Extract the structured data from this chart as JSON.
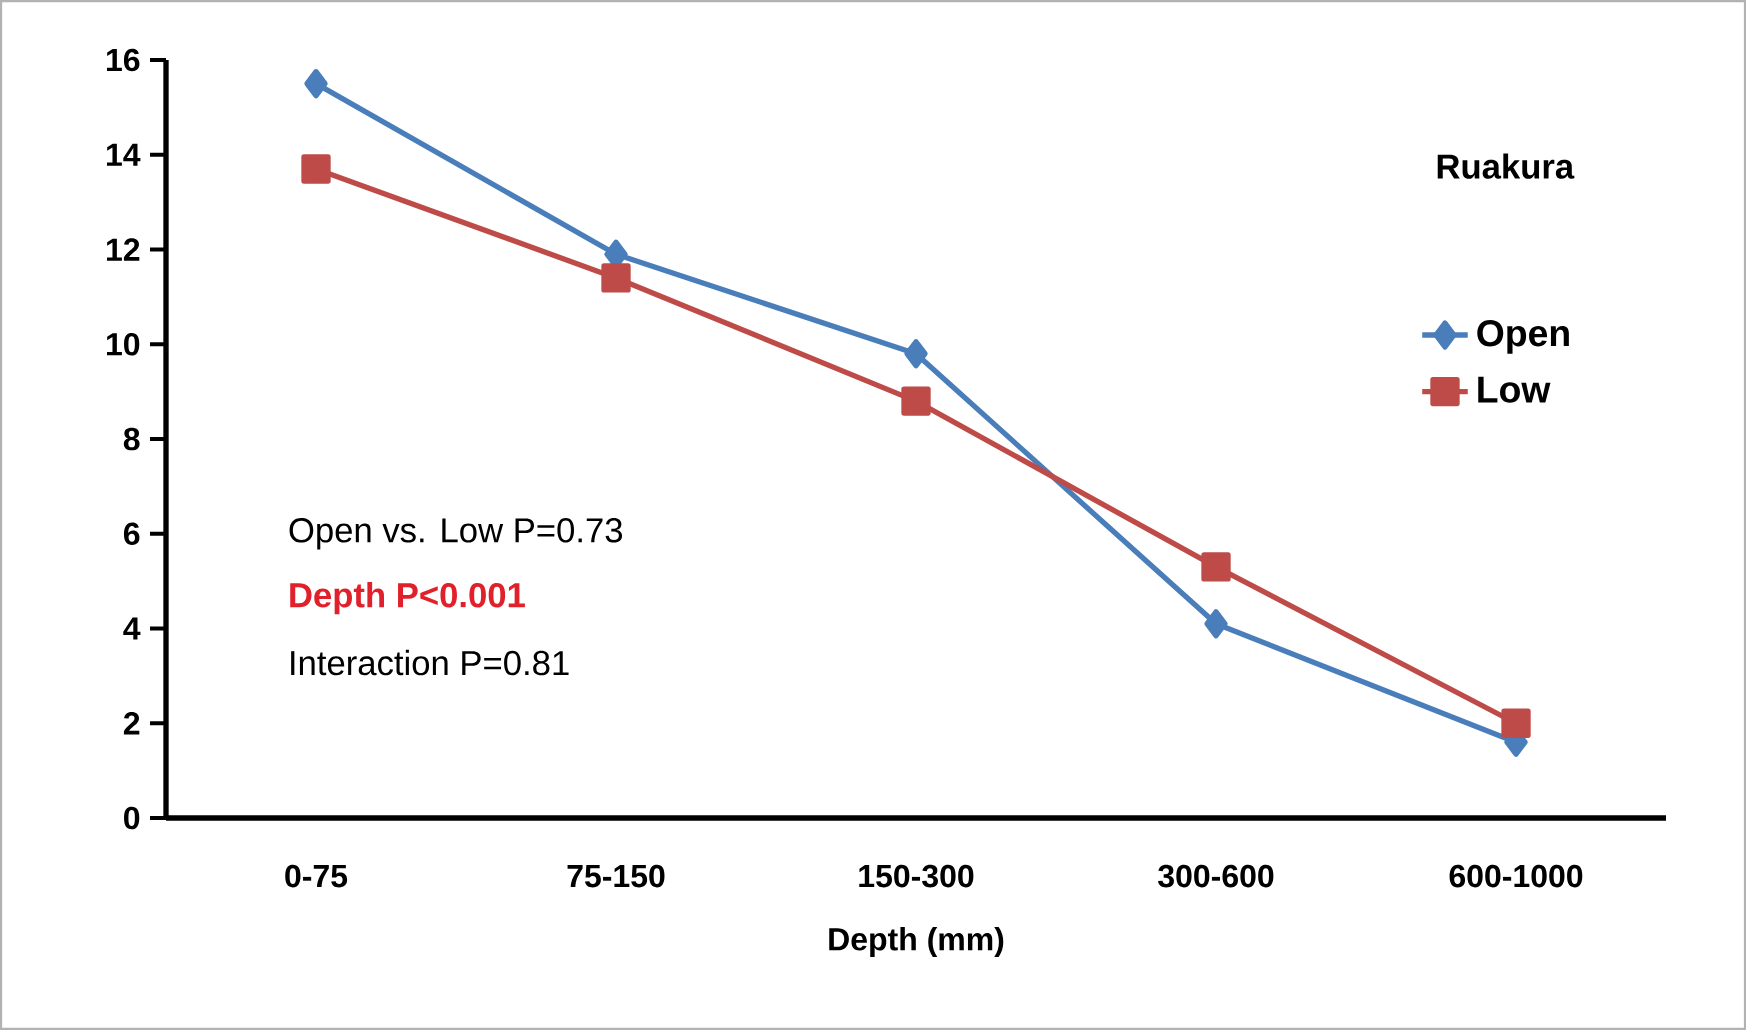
{
  "chart_data": {
    "type": "line",
    "title": "Ruakura",
    "xlabel": "Depth (mm)",
    "categories": [
      "0-75",
      "75-150",
      "150-300",
      "300-600",
      "600-1000"
    ],
    "series": [
      {
        "name": "Open",
        "color": "#4a7ebb",
        "marker": "diamond",
        "values": [
          15.5,
          11.9,
          9.8,
          4.1,
          1.6
        ]
      },
      {
        "name": "Low",
        "color": "#be4b48",
        "marker": "square",
        "values": [
          13.7,
          11.4,
          8.8,
          5.3,
          2.0
        ]
      }
    ],
    "ylim": [
      0,
      16
    ],
    "yticks": [
      0,
      2,
      4,
      6,
      8,
      10,
      12,
      14,
      16
    ],
    "grid": false,
    "legend": "right",
    "annotations": [
      "Open vs. Low P=0.73",
      "Depth P<0.001",
      "Interaction P=0.81"
    ]
  }
}
